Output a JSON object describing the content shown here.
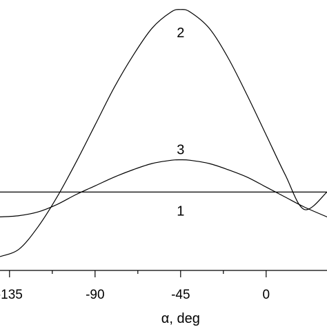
{
  "chart_data": {
    "type": "line",
    "title": "",
    "xlabel": "α, deg",
    "ylabel": "",
    "xlim": [
      -140,
      32
    ],
    "ylim": [
      -0.05,
      1.0
    ],
    "xticks": [
      -135,
      -90,
      -45,
      0
    ],
    "xtick_labels": [
      "-135",
      "-90",
      "-45",
      "0"
    ],
    "minor_xticks": [
      -112.5,
      -67.5,
      -22.5
    ],
    "grid": false,
    "legend": "none",
    "series": [
      {
        "name": "1",
        "x": [
          -140,
          32
        ],
        "y": [
          0.26,
          0.26
        ]
      },
      {
        "name": "2",
        "x": [
          -140,
          -130,
          -120,
          -110,
          -100,
          -90,
          -80,
          -70,
          -60,
          -50,
          -45,
          -40,
          -30,
          -20,
          -10,
          0,
          10,
          20,
          32
        ],
        "y": [
          0.0,
          0.03,
          0.12,
          0.24,
          0.38,
          0.53,
          0.68,
          0.81,
          0.92,
          0.985,
          0.995,
          0.985,
          0.92,
          0.8,
          0.65,
          0.49,
          0.33,
          0.19,
          0.26
        ]
      },
      {
        "name": "3",
        "x": [
          -140,
          -130,
          -120,
          -110,
          -100,
          -90,
          -80,
          -70,
          -60,
          -50,
          -45,
          -40,
          -30,
          -20,
          -10,
          0,
          10,
          20,
          32
        ],
        "y": [
          0.16,
          0.165,
          0.18,
          0.21,
          0.25,
          0.285,
          0.32,
          0.35,
          0.375,
          0.388,
          0.39,
          0.388,
          0.375,
          0.35,
          0.32,
          0.28,
          0.24,
          0.2,
          0.16
        ]
      }
    ]
  }
}
